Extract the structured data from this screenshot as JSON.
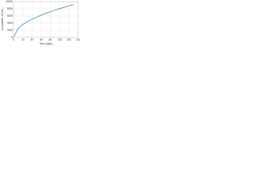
{
  "chart_data": {
    "type": "line",
    "x_label": "Time (days)",
    "y_label": "Cumulative oil (m³)",
    "x": [
      0,
      10,
      20,
      30,
      40,
      50,
      60,
      70,
      80,
      90,
      100,
      110,
      120,
      130
    ],
    "series": [
      {
        "name": "Cumulative oil",
        "color": "#3a78c2",
        "values": [
          0,
          2540,
          3590,
          4400,
          5080,
          5680,
          6220,
          6720,
          7180,
          7620,
          8030,
          8420,
          8800,
          9160
        ]
      }
    ],
    "xlim": [
      0,
      140
    ],
    "xticks": [
      0,
      20,
      40,
      60,
      80,
      100,
      120,
      140
    ],
    "ylim": [
      0,
      10000
    ],
    "yticks": [
      0,
      2000,
      4000,
      6000,
      8000,
      10000
    ],
    "grid": true
  }
}
